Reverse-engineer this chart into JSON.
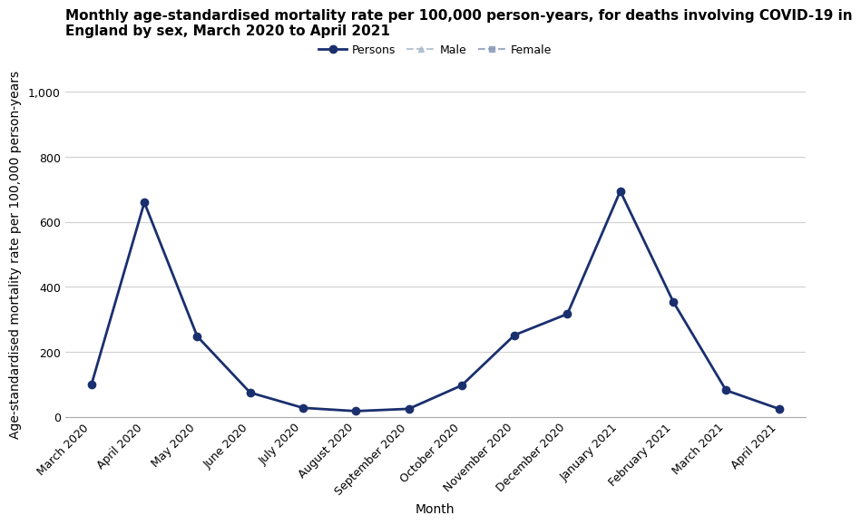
{
  "title_line1": "Monthly age-standardised mortality rate per 100,000 person-years, for deaths involving COVID-19 in",
  "title_line2": "England by sex, March 2020 to April 2021",
  "xlabel": "Month",
  "ylabel": "Age-standardised mortality rate per 100,000 person-years",
  "months": [
    "March 2020",
    "April 2020",
    "May 2020",
    "June 2020",
    "July 2020",
    "August 2020",
    "September 2020",
    "October 2020",
    "November 2020",
    "December 2020",
    "January 2021",
    "February 2021",
    "March 2021",
    "April 2021"
  ],
  "persons_values": [
    100,
    660,
    248,
    75,
    28,
    18,
    25,
    97,
    252,
    317,
    695,
    355,
    82,
    25
  ],
  "persons_color": "#1a2f6e",
  "male_color": "#a8b8cc",
  "female_color": "#8898b8",
  "ylim": [
    0,
    1000
  ],
  "yticks": [
    0,
    200,
    400,
    600,
    800,
    1000
  ],
  "background_color": "#ffffff",
  "grid_color": "#d0d0d0",
  "legend_entries": [
    "Persons",
    "Male",
    "Female"
  ],
  "title_fontsize": 11,
  "axis_label_fontsize": 10,
  "tick_fontsize": 9,
  "legend_fontsize": 9
}
